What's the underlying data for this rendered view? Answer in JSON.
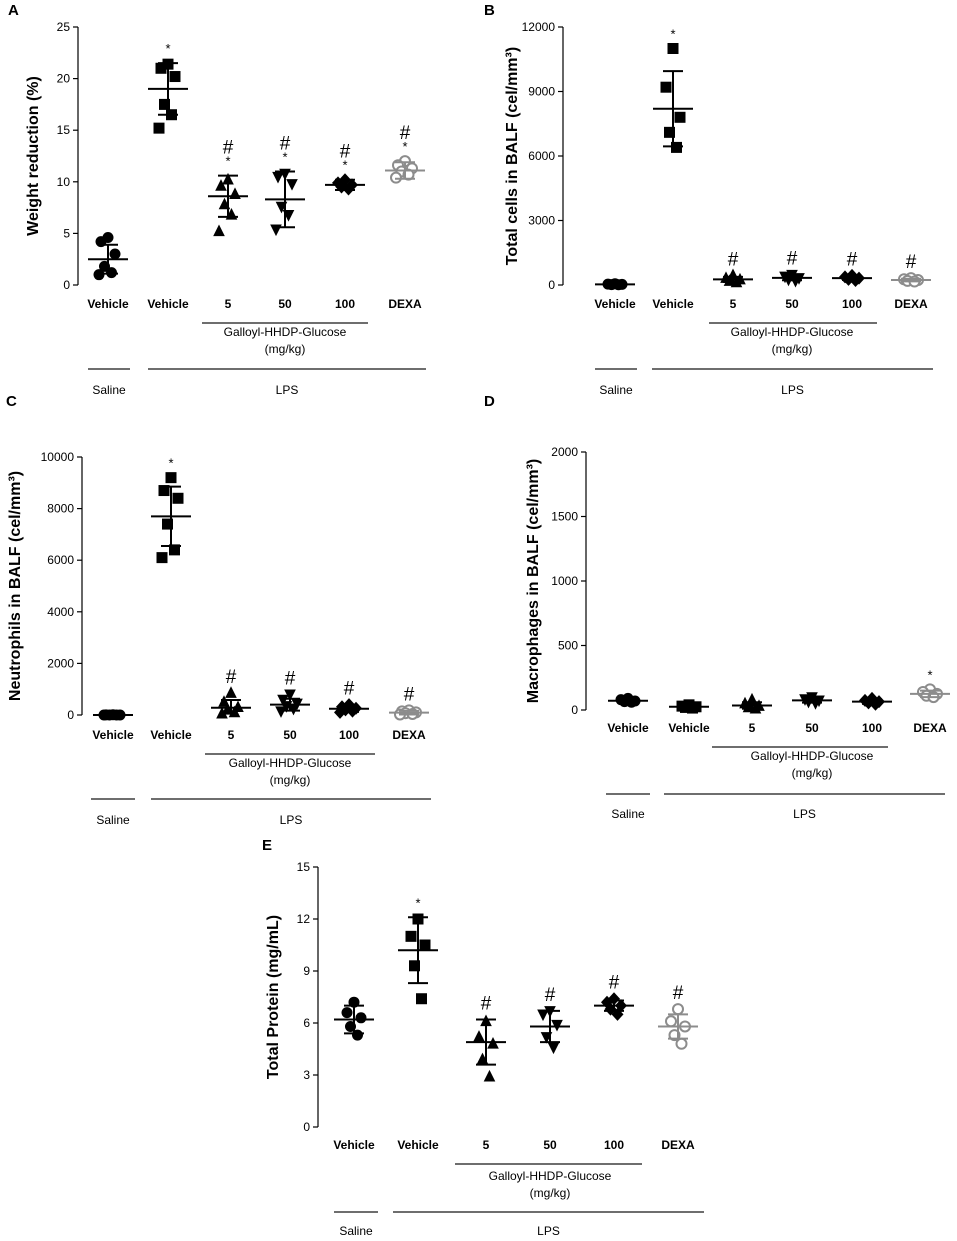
{
  "chart_data": [
    {
      "panel": "A",
      "type": "scatter",
      "ylabel": "Weight reduction (%)",
      "ylim": [
        0,
        25
      ],
      "yticks": [
        0,
        5,
        10,
        15,
        20,
        25
      ],
      "categories": [
        "Vehicle",
        "Vehicle",
        "5",
        "50",
        "100",
        "DEXA"
      ],
      "group_label": [
        "Galloyl-HHDP-Glucose",
        "(mg/kg)"
      ],
      "saline_label": "Saline",
      "lps_label": "LPS",
      "series": [
        {
          "name": "Vehicle",
          "treatment": "Saline",
          "marker": "circle",
          "color": "#000000",
          "values": [
            4.6,
            4.2,
            3.0,
            1.8,
            1.2,
            1.0
          ],
          "mean": 2.5,
          "sd": 1.4,
          "sig": ""
        },
        {
          "name": "Vehicle",
          "treatment": "LPS",
          "marker": "square",
          "color": "#000000",
          "values": [
            21.4,
            21.0,
            20.2,
            17.5,
            16.5,
            15.2
          ],
          "mean": 19.0,
          "sd": 2.5,
          "sig": "*"
        },
        {
          "name": "5",
          "treatment": "LPS",
          "marker": "triangle",
          "color": "#000000",
          "values": [
            10.2,
            9.6,
            8.8,
            7.8,
            6.8,
            5.2
          ],
          "mean": 8.6,
          "sd": 2.0,
          "sig": "#*"
        },
        {
          "name": "50",
          "treatment": "LPS",
          "marker": "triangle-down",
          "color": "#000000",
          "values": [
            10.8,
            10.5,
            9.8,
            7.6,
            6.8,
            5.4
          ],
          "mean": 8.3,
          "sd": 2.7,
          "sig": "#*"
        },
        {
          "name": "100",
          "treatment": "LPS",
          "marker": "diamond",
          "color": "#000000",
          "values": [
            10.2,
            9.9,
            9.7,
            9.5,
            9.3
          ],
          "mean": 9.7,
          "sd": 0.5,
          "sig": "#*"
        },
        {
          "name": "DEXA",
          "treatment": "LPS",
          "marker": "circle-open",
          "color": "#8c8c8c",
          "values": [
            12.0,
            11.6,
            11.3,
            11.0,
            10.7,
            10.4
          ],
          "mean": 11.1,
          "sd": 0.8,
          "sig": "#*"
        }
      ]
    },
    {
      "panel": "B",
      "type": "scatter",
      "ylabel": "Total cells in BALF (cel/mm³)",
      "ylim": [
        0,
        12000
      ],
      "yticks": [
        0,
        3000,
        6000,
        9000,
        12000
      ],
      "categories": [
        "Vehicle",
        "Vehicle",
        "5",
        "50",
        "100",
        "DEXA"
      ],
      "group_label": [
        "Galloyl-HHDP-Glucose",
        "(mg/kg)"
      ],
      "saline_label": "Saline",
      "lps_label": "LPS",
      "series": [
        {
          "name": "Vehicle",
          "treatment": "Saline",
          "marker": "circle",
          "color": "#000000",
          "values": [
            60,
            40,
            30,
            20,
            10
          ],
          "mean": 30,
          "sd": 20,
          "sig": ""
        },
        {
          "name": "Vehicle",
          "treatment": "LPS",
          "marker": "square",
          "color": "#000000",
          "values": [
            11000,
            9200,
            7800,
            7100,
            6400
          ],
          "mean": 8200,
          "sd": 1750,
          "sig": "*"
        },
        {
          "name": "5",
          "treatment": "LPS",
          "marker": "triangle",
          "color": "#000000",
          "values": [
            450,
            320,
            250,
            180,
            120
          ],
          "mean": 260,
          "sd": 120,
          "sig": "#"
        },
        {
          "name": "50",
          "treatment": "LPS",
          "marker": "triangle-down",
          "color": "#000000",
          "values": [
            480,
            400,
            330,
            260,
            200
          ],
          "mean": 330,
          "sd": 110,
          "sig": "#"
        },
        {
          "name": "100",
          "treatment": "LPS",
          "marker": "diamond",
          "color": "#000000",
          "values": [
            450,
            380,
            320,
            260,
            210
          ],
          "mean": 320,
          "sd": 90,
          "sig": "#"
        },
        {
          "name": "DEXA",
          "treatment": "LPS",
          "marker": "circle-open",
          "color": "#8c8c8c",
          "values": [
            320,
            270,
            230,
            190,
            160
          ],
          "mean": 230,
          "sd": 60,
          "sig": "#"
        }
      ]
    },
    {
      "panel": "C",
      "type": "scatter",
      "ylabel": "Neutrophils in BALF (cel/mm³)",
      "ylim": [
        0,
        10000
      ],
      "yticks": [
        0,
        2000,
        4000,
        6000,
        8000,
        10000
      ],
      "categories": [
        "Vehicle",
        "Vehicle",
        "5",
        "50",
        "100",
        "DEXA"
      ],
      "group_label": [
        "Galloyl-HHDP-Glucose",
        "(mg/kg)"
      ],
      "saline_label": "Saline",
      "lps_label": "LPS",
      "series": [
        {
          "name": "Vehicle",
          "treatment": "Saline",
          "marker": "circle",
          "color": "#000000",
          "values": [
            10,
            5,
            0,
            0,
            0,
            0
          ],
          "mean": 0,
          "sd": 5,
          "sig": ""
        },
        {
          "name": "Vehicle",
          "treatment": "LPS",
          "marker": "square",
          "color": "#000000",
          "values": [
            9200,
            8700,
            8400,
            7400,
            6400,
            6100
          ],
          "mean": 7700,
          "sd": 1150,
          "sig": "*"
        },
        {
          "name": "5",
          "treatment": "LPS",
          "marker": "triangle",
          "color": "#000000",
          "values": [
            850,
            500,
            300,
            200,
            100,
            50
          ],
          "mean": 280,
          "sd": 300,
          "sig": "#"
        },
        {
          "name": "50",
          "treatment": "LPS",
          "marker": "triangle-down",
          "color": "#000000",
          "values": [
            800,
            600,
            450,
            350,
            250,
            150
          ],
          "mean": 400,
          "sd": 230,
          "sig": "#"
        },
        {
          "name": "100",
          "treatment": "LPS",
          "marker": "diamond",
          "color": "#000000",
          "values": [
            400,
            320,
            260,
            200,
            150,
            100
          ],
          "mean": 240,
          "sd": 120,
          "sig": "#"
        },
        {
          "name": "DEXA",
          "treatment": "LPS",
          "marker": "circle-open",
          "color": "#8c8c8c",
          "values": [
            180,
            140,
            100,
            70,
            40,
            20
          ],
          "mean": 90,
          "sd": 70,
          "sig": "#"
        }
      ]
    },
    {
      "panel": "D",
      "type": "scatter",
      "ylabel": "Macrophages in BALF (cel/mm³)",
      "ylim": [
        0,
        2000
      ],
      "yticks": [
        0,
        500,
        1000,
        1500,
        2000
      ],
      "categories": [
        "Vehicle",
        "Vehicle",
        "5",
        "50",
        "100",
        "DEXA"
      ],
      "group_label": [
        "Galloyl-HHDP-Glucose",
        "(mg/kg)"
      ],
      "saline_label": "Saline",
      "lps_label": "LPS",
      "series": [
        {
          "name": "Vehicle",
          "treatment": "Saline",
          "marker": "circle",
          "color": "#000000",
          "values": [
            90,
            80,
            70,
            65,
            60
          ],
          "mean": 72,
          "sd": 12,
          "sig": ""
        },
        {
          "name": "Vehicle",
          "treatment": "LPS",
          "marker": "square",
          "color": "#000000",
          "values": [
            40,
            30,
            25,
            20,
            15
          ],
          "mean": 25,
          "sd": 10,
          "sig": ""
        },
        {
          "name": "5",
          "treatment": "LPS",
          "marker": "triangle",
          "color": "#000000",
          "values": [
            80,
            50,
            30,
            20,
            10
          ],
          "mean": 35,
          "sd": 25,
          "sig": ""
        },
        {
          "name": "50",
          "treatment": "LPS",
          "marker": "triangle-down",
          "color": "#000000",
          "values": [
            100,
            85,
            75,
            65,
            55
          ],
          "mean": 75,
          "sd": 18,
          "sig": ""
        },
        {
          "name": "100",
          "treatment": "LPS",
          "marker": "diamond",
          "color": "#000000",
          "values": [
            90,
            75,
            65,
            55,
            45
          ],
          "mean": 65,
          "sd": 18,
          "sig": ""
        },
        {
          "name": "DEXA",
          "treatment": "LPS",
          "marker": "circle-open",
          "color": "#8c8c8c",
          "values": [
            160,
            140,
            125,
            110,
            100
          ],
          "mean": 125,
          "sd": 25,
          "sig": "*"
        }
      ]
    },
    {
      "panel": "E",
      "type": "scatter",
      "ylabel": "Total Protein (mg/mL)",
      "ylim": [
        0,
        15
      ],
      "yticks": [
        0,
        3,
        6,
        9,
        12,
        15
      ],
      "categories": [
        "Vehicle",
        "Vehicle",
        "5",
        "50",
        "100",
        "DEXA"
      ],
      "group_label": [
        "Galloyl-HHDP-Glucose",
        "(mg/kg)"
      ],
      "saline_label": "Saline",
      "lps_label": "LPS",
      "series": [
        {
          "name": "Vehicle",
          "treatment": "Saline",
          "marker": "circle",
          "color": "#000000",
          "values": [
            7.2,
            6.6,
            6.3,
            5.8,
            5.3
          ],
          "mean": 6.2,
          "sd": 0.8,
          "sig": ""
        },
        {
          "name": "Vehicle",
          "treatment": "LPS",
          "marker": "square",
          "color": "#000000",
          "values": [
            12.0,
            11.0,
            10.5,
            9.3,
            7.4
          ],
          "mean": 10.2,
          "sd": 1.9,
          "sig": "*"
        },
        {
          "name": "5",
          "treatment": "LPS",
          "marker": "triangle",
          "color": "#000000",
          "values": [
            6.1,
            5.2,
            4.8,
            3.9,
            2.9
          ],
          "mean": 4.9,
          "sd": 1.3,
          "sig": "#"
        },
        {
          "name": "50",
          "treatment": "LPS",
          "marker": "triangle-down",
          "color": "#000000",
          "values": [
            6.7,
            6.5,
            5.9,
            5.2,
            4.6
          ],
          "mean": 5.8,
          "sd": 0.9,
          "sig": "#"
        },
        {
          "name": "100",
          "treatment": "LPS",
          "marker": "diamond",
          "color": "#000000",
          "values": [
            7.4,
            7.2,
            7.0,
            6.8,
            6.5
          ],
          "mean": 7.0,
          "sd": 0.3,
          "sig": "#"
        },
        {
          "name": "DEXA",
          "treatment": "LPS",
          "marker": "circle-open",
          "color": "#8c8c8c",
          "values": [
            6.8,
            6.1,
            5.8,
            5.3,
            4.8
          ],
          "mean": 5.8,
          "sd": 0.7,
          "sig": "#"
        }
      ]
    }
  ]
}
